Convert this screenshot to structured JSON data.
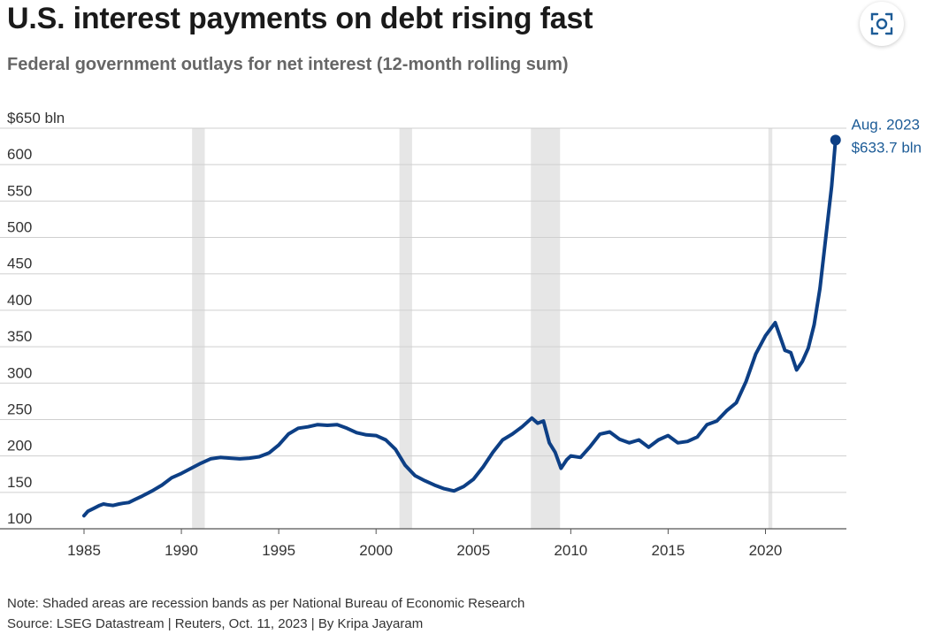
{
  "header": {
    "title": "U.S. interest payments on debt rising fast",
    "subtitle": "Federal government outlays for net interest (12-month rolling sum)"
  },
  "toolbar": {
    "expand_icon": "expand-focus-icon"
  },
  "colors": {
    "line": "#0d3f85",
    "annotation": "#1d5c97",
    "recession": "#e6e6e6",
    "grid": "#cfcfcf",
    "axis": "#555555",
    "tick": "#333333"
  },
  "chart_data": {
    "type": "line",
    "title": "U.S. interest payments on debt rising fast",
    "subtitle": "Federal government outlays for net interest (12-month rolling sum)",
    "xlabel": "",
    "ylabel": "",
    "xlim": [
      1985,
      2023.9
    ],
    "ylim": [
      100,
      650
    ],
    "x_ticks": [
      1985,
      1990,
      1995,
      2000,
      2005,
      2010,
      2015,
      2020
    ],
    "x_tick_labels": [
      "1985",
      "1990",
      "1995",
      "2000",
      "2005",
      "2010",
      "2015",
      "2020"
    ],
    "y_ticks": [
      100,
      150,
      200,
      250,
      300,
      350,
      400,
      450,
      500,
      550,
      600,
      650
    ],
    "y_tick_labels": [
      "100",
      "150",
      "200",
      "250",
      "300",
      "350",
      "400",
      "450",
      "500",
      "550",
      "600",
      "$650 bln"
    ],
    "grid": "horizontal",
    "recession_bands": [
      [
        1990.55,
        1991.2
      ],
      [
        2001.2,
        2001.85
      ],
      [
        2007.95,
        2009.45
      ],
      [
        2020.15,
        2020.35
      ]
    ],
    "series": [
      {
        "name": "",
        "x": [
          1985.0,
          1985.2,
          1985.5,
          1985.8,
          1986.0,
          1986.2,
          1986.5,
          1986.8,
          1987.0,
          1987.3,
          1987.6,
          1988.0,
          1988.5,
          1989.0,
          1989.5,
          1990.0,
          1990.5,
          1991.0,
          1991.5,
          1992.0,
          1992.5,
          1993.0,
          1993.5,
          1994.0,
          1994.5,
          1995.0,
          1995.5,
          1996.0,
          1996.5,
          1997.0,
          1997.5,
          1998.0,
          1998.5,
          1999.0,
          1999.5,
          2000.0,
          2000.5,
          2001.0,
          2001.5,
          2002.0,
          2002.5,
          2003.0,
          2003.5,
          2004.0,
          2004.5,
          2005.0,
          2005.5,
          2006.0,
          2006.5,
          2007.0,
          2007.5,
          2008.0,
          2008.3,
          2008.6,
          2008.9,
          2009.2,
          2009.5,
          2009.8,
          2010.0,
          2010.5,
          2011.0,
          2011.5,
          2012.0,
          2012.5,
          2013.0,
          2013.5,
          2014.0,
          2014.5,
          2015.0,
          2015.5,
          2016.0,
          2016.5,
          2017.0,
          2017.5,
          2018.0,
          2018.5,
          2019.0,
          2019.5,
          2020.0,
          2020.5,
          2021.0,
          2021.3,
          2021.6,
          2021.9,
          2022.2,
          2022.5,
          2022.8,
          2023.1,
          2023.4,
          2023.6
        ],
        "y": [
          118,
          124,
          128,
          132,
          134,
          133,
          132,
          134,
          135,
          136,
          140,
          145,
          152,
          160,
          170,
          176,
          183,
          190,
          196,
          198,
          197,
          196,
          197,
          199,
          204,
          215,
          230,
          238,
          240,
          243,
          242,
          243,
          238,
          232,
          229,
          228,
          222,
          209,
          187,
          173,
          166,
          160,
          155,
          152,
          158,
          168,
          185,
          205,
          222,
          230,
          240,
          252,
          245,
          248,
          218,
          205,
          183,
          195,
          200,
          198,
          213,
          230,
          233,
          223,
          218,
          222,
          212,
          222,
          228,
          218,
          220,
          226,
          243,
          248,
          262,
          273,
          302,
          340,
          365,
          383,
          345,
          342,
          318,
          330,
          348,
          380,
          430,
          500,
          570,
          633.7
        ]
      }
    ],
    "annotations": [
      {
        "label": "Aug. 2023",
        "value_label": "$633.7 bln",
        "x": 2023.6,
        "y": 633.7
      }
    ]
  },
  "footer": {
    "note": "Note: Shaded areas are recession bands as per National Bureau of Economic Research",
    "source": "Source: LSEG Datastream | Reuters, Oct. 11, 2023 | By Kripa Jayaram"
  }
}
